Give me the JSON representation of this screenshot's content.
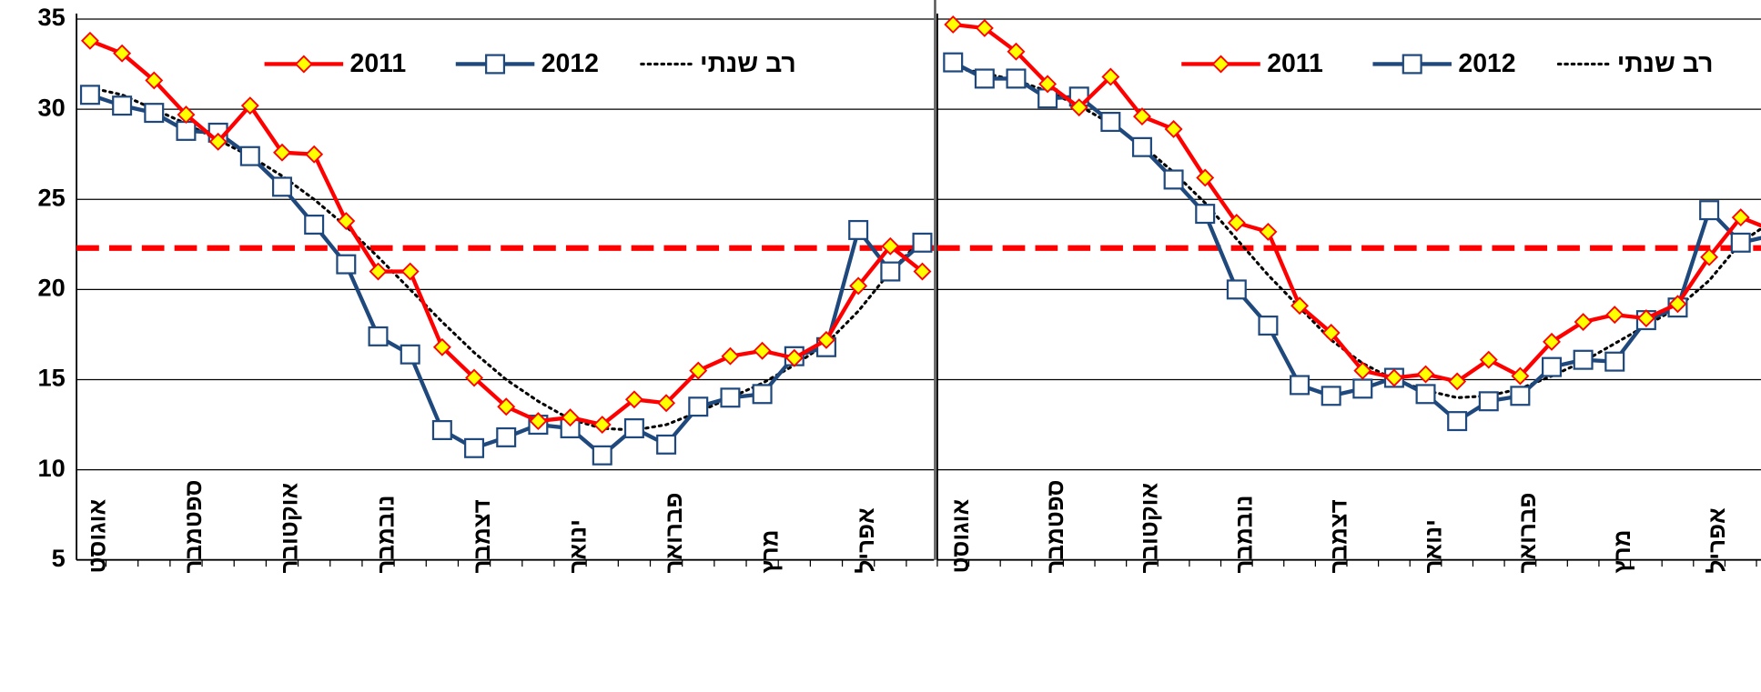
{
  "chart_data": [
    {
      "type": "line",
      "categories": [
        "אוגוסט",
        null,
        null,
        "ספטמבר",
        null,
        null,
        "אוקטובר",
        null,
        null,
        "נובמבר",
        null,
        null,
        "דצמבר",
        null,
        null,
        "ינואר",
        null,
        null,
        "פברואר",
        null,
        null,
        "מרץ",
        null,
        null,
        "אפריל",
        null,
        null
      ],
      "series": [
        {
          "name": "2011",
          "color": "#ff0000",
          "marker": "diamond",
          "marker_fill": "#ffff00",
          "values": [
            33.8,
            33.1,
            31.6,
            29.7,
            28.2,
            30.2,
            27.6,
            27.5,
            23.8,
            21.0,
            21.0,
            16.8,
            15.1,
            13.5,
            12.7,
            12.9,
            12.5,
            13.9,
            13.7,
            15.5,
            16.3,
            16.6,
            16.2,
            17.2,
            20.2,
            22.4,
            21.0
          ]
        },
        {
          "name": "2012",
          "color": "#1f497d",
          "marker": "square",
          "marker_fill": "#ffffff",
          "values": [
            30.8,
            30.2,
            29.8,
            28.8,
            28.7,
            27.4,
            25.7,
            23.6,
            21.4,
            17.4,
            16.4,
            12.2,
            11.2,
            11.8,
            12.5,
            12.3,
            10.8,
            12.3,
            11.4,
            13.5,
            14.0,
            14.2,
            16.3,
            16.8,
            23.3,
            21.0,
            22.6
          ]
        },
        {
          "name": "רב שנתי",
          "color": "#000000",
          "marker": "none",
          "dotted": true,
          "values": [
            31.2,
            30.8,
            30.0,
            29.2,
            28.3,
            27.4,
            26.3,
            25.0,
            23.5,
            21.8,
            20.0,
            18.2,
            16.5,
            15.0,
            13.8,
            12.8,
            12.3,
            12.2,
            12.5,
            13.2,
            14.0,
            14.8,
            15.8,
            17.0,
            18.8,
            21.0,
            22.8
          ]
        }
      ],
      "reference_line": {
        "value": 22.3,
        "color": "#ff0000"
      },
      "ylim": [
        5,
        35
      ],
      "yticks": [
        5,
        10,
        15,
        20,
        25,
        30,
        35
      ],
      "show_ytick_labels": true,
      "grid": true
    },
    {
      "type": "line",
      "categories": [
        "אוגוסט",
        null,
        null,
        "ספטמבר",
        null,
        null,
        "אוקטובר",
        null,
        null,
        "נובמבר",
        null,
        null,
        "דצמבר",
        null,
        null,
        "ינואר",
        null,
        null,
        "פברואר",
        null,
        null,
        "מרץ",
        null,
        null,
        "אפריל",
        null,
        null
      ],
      "series": [
        {
          "name": "2011",
          "color": "#ff0000",
          "marker": "diamond",
          "marker_fill": "#ffff00",
          "values": [
            34.7,
            34.5,
            33.2,
            31.4,
            30.1,
            31.8,
            29.6,
            28.9,
            26.2,
            23.7,
            23.2,
            19.1,
            17.6,
            15.5,
            15.1,
            15.3,
            14.9,
            16.1,
            15.2,
            17.1,
            18.2,
            18.6,
            18.4,
            19.2,
            21.8,
            24.0,
            23.3
          ]
        },
        {
          "name": "2012",
          "color": "#1f497d",
          "marker": "square",
          "marker_fill": "#ffffff",
          "values": [
            32.6,
            31.7,
            31.7,
            30.6,
            30.7,
            29.3,
            27.9,
            26.1,
            24.2,
            20.0,
            18.0,
            14.7,
            14.1,
            14.5,
            15.1,
            14.2,
            12.7,
            13.8,
            14.1,
            15.7,
            16.1,
            16.0,
            18.3,
            19.0,
            24.4,
            22.6,
            23.0
          ]
        },
        {
          "name": "רב שנתי",
          "color": "#000000",
          "marker": "none",
          "dotted": true,
          "values": [
            32.3,
            32.0,
            31.6,
            31.0,
            30.2,
            29.2,
            28.0,
            26.5,
            24.8,
            22.8,
            20.8,
            19.0,
            17.2,
            15.9,
            15.0,
            14.4,
            14.0,
            14.1,
            14.5,
            15.2,
            16.0,
            17.0,
            18.0,
            19.0,
            20.5,
            22.6,
            23.8
          ]
        }
      ],
      "reference_line": {
        "value": 22.3,
        "color": "#ff0000"
      },
      "ylim": [
        5,
        35
      ],
      "yticks": [
        5,
        10,
        15,
        20,
        25,
        30,
        35
      ],
      "show_ytick_labels": false,
      "grid": true
    }
  ]
}
